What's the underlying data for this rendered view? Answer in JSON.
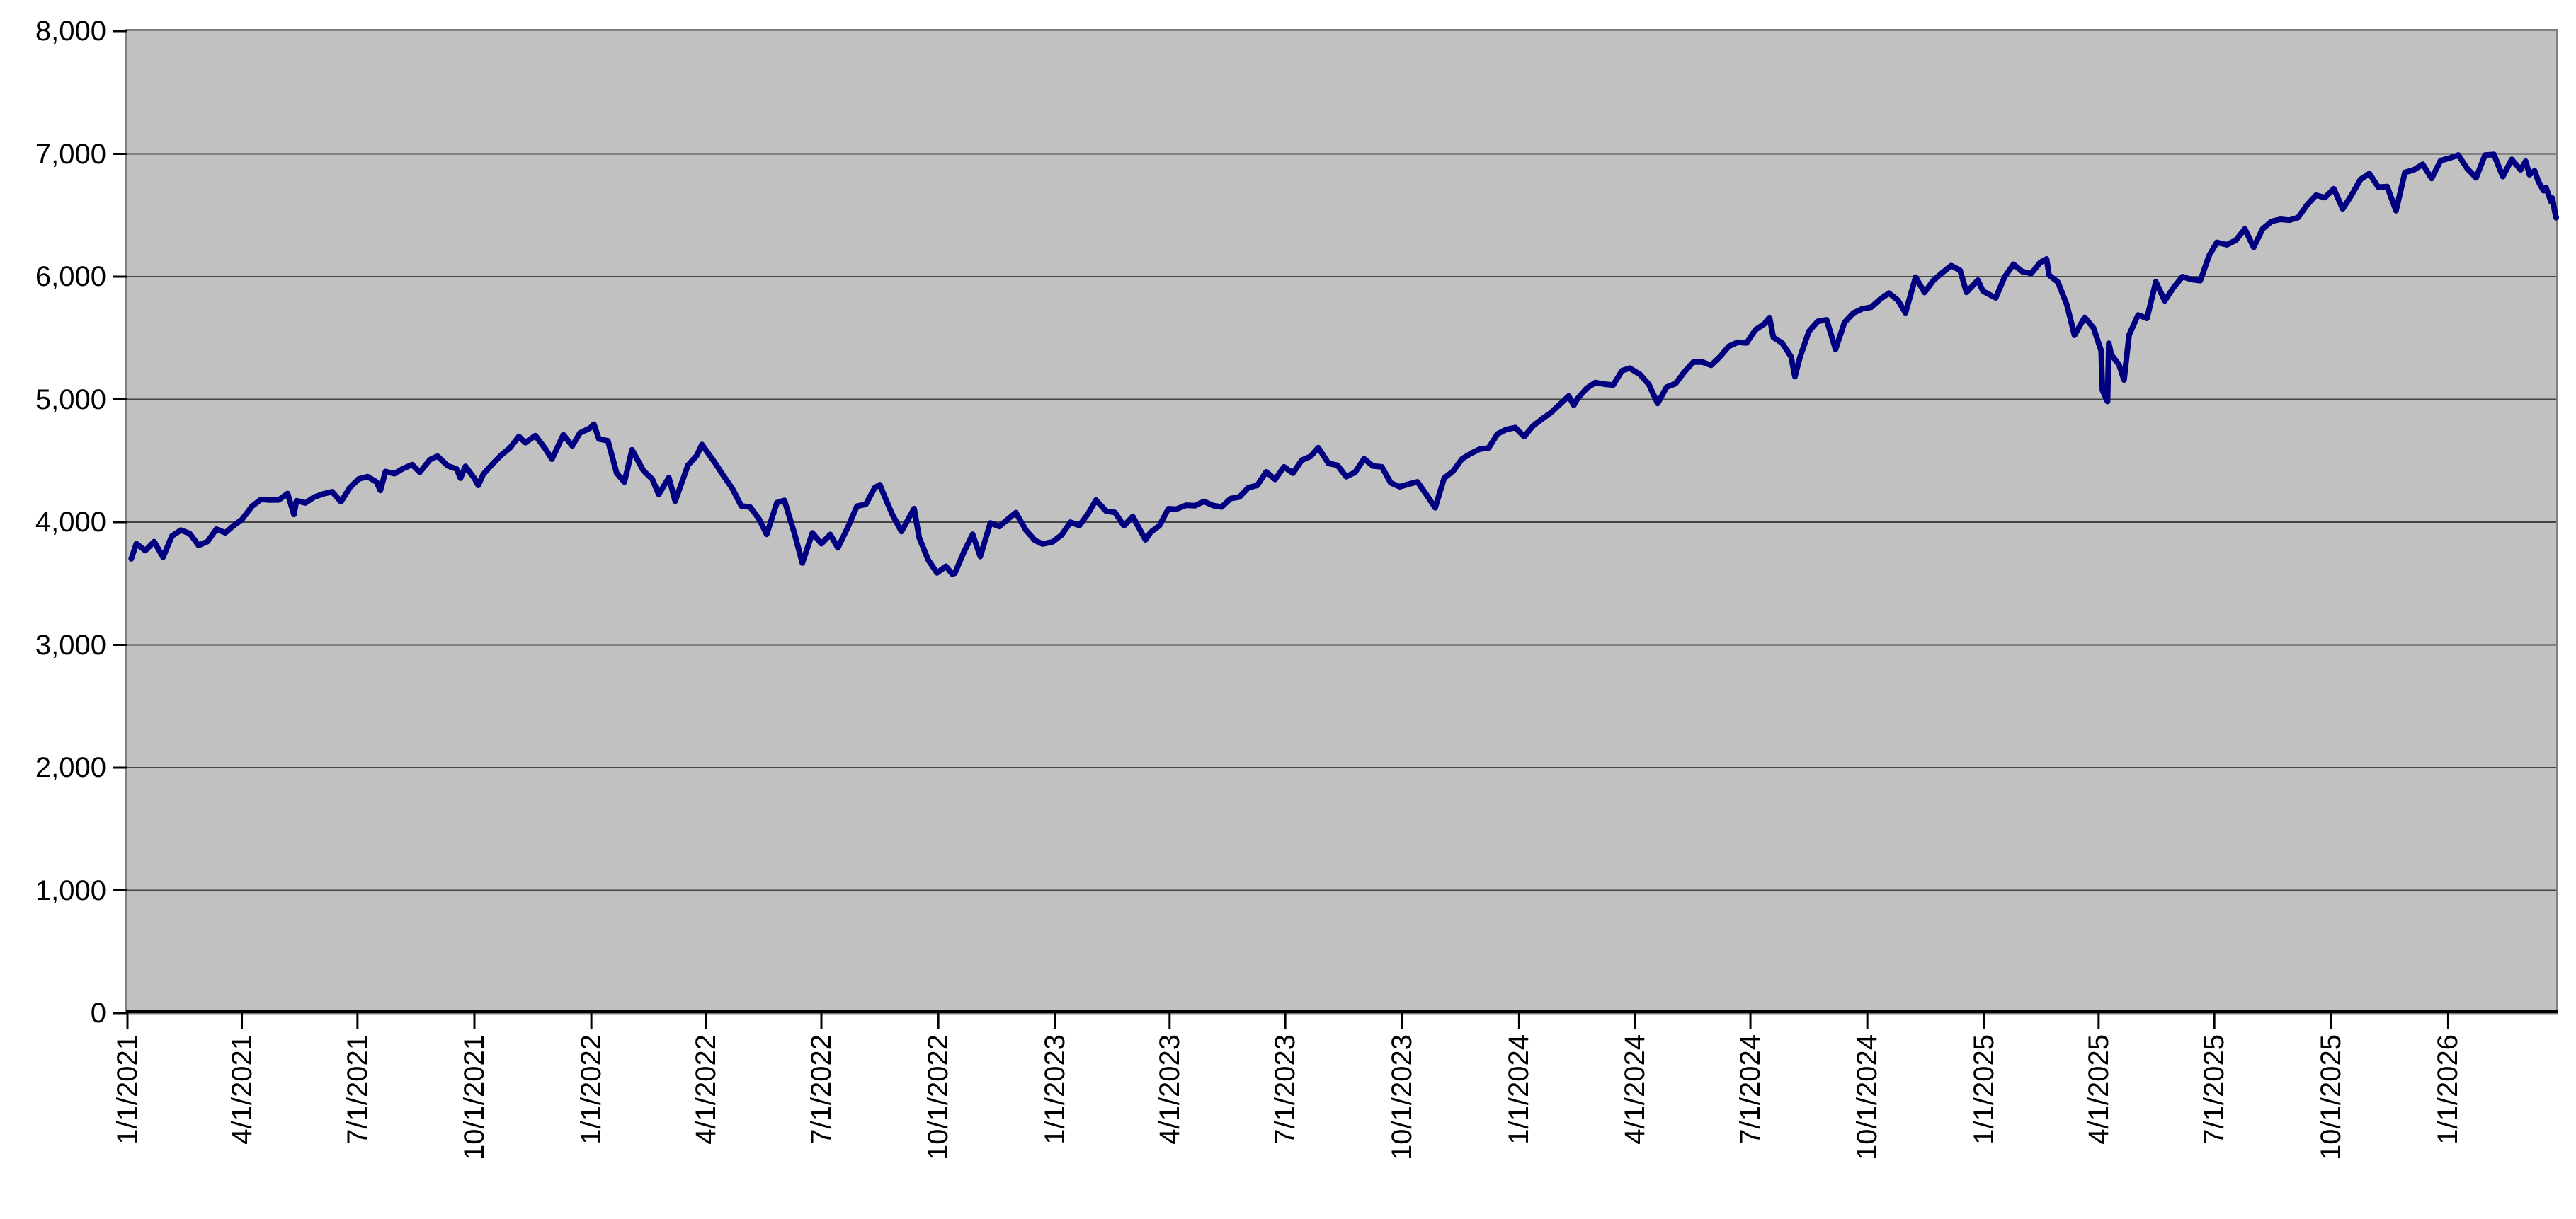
{
  "chart_data": {
    "type": "line",
    "title": "",
    "xlabel": "",
    "ylabel": "",
    "grid": "horizontal",
    "legend": "none",
    "ylim": [
      0,
      8000
    ],
    "x_min": "2021-01-01",
    "x_max": "2026-03-27",
    "x_tick_rotation_deg": 90,
    "colors": {
      "page_bg": "#ffffff",
      "plot_bg": "#c1c1c1",
      "plot_border": "#7f7f7f",
      "gridline": "#444444",
      "axis_line": "#000000",
      "tick_mark": "#000000",
      "label_text": "#000000",
      "series_line": "#000080"
    },
    "y_ticks": [
      {
        "value": 0,
        "label": "0"
      },
      {
        "value": 1000,
        "label": "1,000"
      },
      {
        "value": 2000,
        "label": "2,000"
      },
      {
        "value": 3000,
        "label": "3,000"
      },
      {
        "value": 4000,
        "label": "4,000"
      },
      {
        "value": 5000,
        "label": "5,000"
      },
      {
        "value": 6000,
        "label": "6,000"
      },
      {
        "value": 7000,
        "label": "7,000"
      },
      {
        "value": 8000,
        "label": "8,000"
      }
    ],
    "x_ticks": [
      {
        "date": "2021-01-01",
        "label": "1/1/2021"
      },
      {
        "date": "2021-04-01",
        "label": "4/1/2021"
      },
      {
        "date": "2021-07-01",
        "label": "7/1/2021"
      },
      {
        "date": "2021-10-01",
        "label": "10/1/2021"
      },
      {
        "date": "2022-01-01",
        "label": "1/1/2022"
      },
      {
        "date": "2022-04-01",
        "label": "4/1/2022"
      },
      {
        "date": "2022-07-01",
        "label": "7/1/2022"
      },
      {
        "date": "2022-10-01",
        "label": "10/1/2022"
      },
      {
        "date": "2023-01-01",
        "label": "1/1/2023"
      },
      {
        "date": "2023-04-01",
        "label": "4/1/2023"
      },
      {
        "date": "2023-07-01",
        "label": "7/1/2023"
      },
      {
        "date": "2023-10-01",
        "label": "10/1/2023"
      },
      {
        "date": "2024-01-01",
        "label": "1/1/2024"
      },
      {
        "date": "2024-04-01",
        "label": "4/1/2024"
      },
      {
        "date": "2024-07-01",
        "label": "7/1/2024"
      },
      {
        "date": "2024-10-01",
        "label": "10/1/2024"
      },
      {
        "date": "2025-01-01",
        "label": "1/1/2025"
      },
      {
        "date": "2025-04-01",
        "label": "4/1/2025"
      },
      {
        "date": "2025-07-01",
        "label": "7/1/2025"
      },
      {
        "date": "2025-10-01",
        "label": "10/1/2025"
      },
      {
        "date": "2026-01-01",
        "label": "1/1/2026"
      }
    ],
    "points": [
      [
        "2021-01-04",
        3701
      ],
      [
        "2021-01-08",
        3825
      ],
      [
        "2021-01-15",
        3768
      ],
      [
        "2021-01-22",
        3841
      ],
      [
        "2021-01-29",
        3714
      ],
      [
        "2021-02-05",
        3887
      ],
      [
        "2021-02-12",
        3935
      ],
      [
        "2021-02-19",
        3907
      ],
      [
        "2021-02-26",
        3811
      ],
      [
        "2021-03-05",
        3842
      ],
      [
        "2021-03-12",
        3943
      ],
      [
        "2021-03-19",
        3913
      ],
      [
        "2021-03-26",
        3975
      ],
      [
        "2021-04-01",
        4020
      ],
      [
        "2021-04-09",
        4129
      ],
      [
        "2021-04-16",
        4185
      ],
      [
        "2021-04-23",
        4180
      ],
      [
        "2021-04-30",
        4181
      ],
      [
        "2021-05-07",
        4233
      ],
      [
        "2021-05-12",
        4063
      ],
      [
        "2021-05-14",
        4174
      ],
      [
        "2021-05-21",
        4156
      ],
      [
        "2021-05-28",
        4204
      ],
      [
        "2021-06-04",
        4230
      ],
      [
        "2021-06-11",
        4247
      ],
      [
        "2021-06-18",
        4166
      ],
      [
        "2021-06-25",
        4281
      ],
      [
        "2021-07-02",
        4352
      ],
      [
        "2021-07-09",
        4370
      ],
      [
        "2021-07-16",
        4327
      ],
      [
        "2021-07-19",
        4258
      ],
      [
        "2021-07-23",
        4412
      ],
      [
        "2021-07-30",
        4395
      ],
      [
        "2021-08-06",
        4437
      ],
      [
        "2021-08-13",
        4468
      ],
      [
        "2021-08-19",
        4406
      ],
      [
        "2021-08-27",
        4509
      ],
      [
        "2021-09-02",
        4537
      ],
      [
        "2021-09-10",
        4459
      ],
      [
        "2021-09-17",
        4433
      ],
      [
        "2021-09-20",
        4358
      ],
      [
        "2021-09-24",
        4455
      ],
      [
        "2021-10-01",
        4357
      ],
      [
        "2021-10-04",
        4300
      ],
      [
        "2021-10-08",
        4391
      ],
      [
        "2021-10-15",
        4471
      ],
      [
        "2021-10-22",
        4545
      ],
      [
        "2021-10-29",
        4605
      ],
      [
        "2021-11-05",
        4698
      ],
      [
        "2021-11-10",
        4647
      ],
      [
        "2021-11-18",
        4705
      ],
      [
        "2021-11-26",
        4595
      ],
      [
        "2021-12-01",
        4513
      ],
      [
        "2021-12-10",
        4712
      ],
      [
        "2021-12-17",
        4621
      ],
      [
        "2021-12-23",
        4726
      ],
      [
        "2021-12-31",
        4766
      ],
      [
        "2022-01-03",
        4797
      ],
      [
        "2022-01-07",
        4677
      ],
      [
        "2022-01-14",
        4663
      ],
      [
        "2022-01-21",
        4398
      ],
      [
        "2022-01-27",
        4327
      ],
      [
        "2022-02-02",
        4589
      ],
      [
        "2022-02-11",
        4419
      ],
      [
        "2022-02-18",
        4349
      ],
      [
        "2022-02-23",
        4226
      ],
      [
        "2022-03-03",
        4363
      ],
      [
        "2022-03-08",
        4171
      ],
      [
        "2022-03-18",
        4463
      ],
      [
        "2022-03-25",
        4543
      ],
      [
        "2022-03-29",
        4632
      ],
      [
        "2022-04-08",
        4488
      ],
      [
        "2022-04-14",
        4393
      ],
      [
        "2022-04-22",
        4272
      ],
      [
        "2022-04-29",
        4132
      ],
      [
        "2022-05-06",
        4123
      ],
      [
        "2022-05-13",
        4024
      ],
      [
        "2022-05-19",
        3901
      ],
      [
        "2022-05-27",
        4158
      ],
      [
        "2022-06-02",
        4177
      ],
      [
        "2022-06-10",
        3901
      ],
      [
        "2022-06-16",
        3667
      ],
      [
        "2022-06-24",
        3912
      ],
      [
        "2022-07-01",
        3825
      ],
      [
        "2022-07-08",
        3899
      ],
      [
        "2022-07-14",
        3790
      ],
      [
        "2022-07-22",
        3962
      ],
      [
        "2022-07-29",
        4130
      ],
      [
        "2022-08-05",
        4145
      ],
      [
        "2022-08-12",
        4280
      ],
      [
        "2022-08-16",
        4305
      ],
      [
        "2022-08-19",
        4228
      ],
      [
        "2022-08-26",
        4058
      ],
      [
        "2022-09-02",
        3924
      ],
      [
        "2022-09-12",
        4110
      ],
      [
        "2022-09-16",
        3873
      ],
      [
        "2022-09-23",
        3693
      ],
      [
        "2022-09-30",
        3586
      ],
      [
        "2022-10-07",
        3640
      ],
      [
        "2022-10-12",
        3577
      ],
      [
        "2022-10-14",
        3583
      ],
      [
        "2022-10-21",
        3753
      ],
      [
        "2022-10-28",
        3901
      ],
      [
        "2022-11-03",
        3720
      ],
      [
        "2022-11-11",
        3993
      ],
      [
        "2022-11-18",
        3965
      ],
      [
        "2022-11-25",
        4026
      ],
      [
        "2022-12-01",
        4077
      ],
      [
        "2022-12-09",
        3934
      ],
      [
        "2022-12-16",
        3852
      ],
      [
        "2022-12-22",
        3822
      ],
      [
        "2022-12-30",
        3840
      ],
      [
        "2023-01-06",
        3895
      ],
      [
        "2023-01-13",
        3999
      ],
      [
        "2023-01-20",
        3973
      ],
      [
        "2023-01-27",
        4071
      ],
      [
        "2023-02-02",
        4180
      ],
      [
        "2023-02-10",
        4090
      ],
      [
        "2023-02-17",
        4079
      ],
      [
        "2023-02-24",
        3970
      ],
      [
        "2023-03-03",
        4046
      ],
      [
        "2023-03-13",
        3856
      ],
      [
        "2023-03-17",
        3917
      ],
      [
        "2023-03-24",
        3971
      ],
      [
        "2023-03-31",
        4109
      ],
      [
        "2023-04-06",
        4105
      ],
      [
        "2023-04-14",
        4138
      ],
      [
        "2023-04-21",
        4134
      ],
      [
        "2023-04-28",
        4169
      ],
      [
        "2023-05-05",
        4136
      ],
      [
        "2023-05-12",
        4124
      ],
      [
        "2023-05-19",
        4192
      ],
      [
        "2023-05-26",
        4205
      ],
      [
        "2023-06-02",
        4282
      ],
      [
        "2023-06-09",
        4299
      ],
      [
        "2023-06-16",
        4410
      ],
      [
        "2023-06-23",
        4348
      ],
      [
        "2023-06-30",
        4450
      ],
      [
        "2023-07-07",
        4399
      ],
      [
        "2023-07-14",
        4505
      ],
      [
        "2023-07-21",
        4536
      ],
      [
        "2023-07-27",
        4607
      ],
      [
        "2023-08-04",
        4478
      ],
      [
        "2023-08-11",
        4464
      ],
      [
        "2023-08-18",
        4370
      ],
      [
        "2023-08-25",
        4406
      ],
      [
        "2023-09-01",
        4516
      ],
      [
        "2023-09-08",
        4457
      ],
      [
        "2023-09-15",
        4450
      ],
      [
        "2023-09-22",
        4320
      ],
      [
        "2023-09-29",
        4288
      ],
      [
        "2023-10-06",
        4309
      ],
      [
        "2023-10-13",
        4328
      ],
      [
        "2023-10-20",
        4224
      ],
      [
        "2023-10-27",
        4117
      ],
      [
        "2023-11-03",
        4358
      ],
      [
        "2023-11-10",
        4415
      ],
      [
        "2023-11-17",
        4514
      ],
      [
        "2023-11-24",
        4559
      ],
      [
        "2023-12-01",
        4595
      ],
      [
        "2023-12-08",
        4604
      ],
      [
        "2023-12-15",
        4719
      ],
      [
        "2023-12-22",
        4755
      ],
      [
        "2023-12-29",
        4770
      ],
      [
        "2024-01-05",
        4697
      ],
      [
        "2024-01-12",
        4784
      ],
      [
        "2024-01-19",
        4840
      ],
      [
        "2024-01-26",
        4891
      ],
      [
        "2024-02-02",
        4959
      ],
      [
        "2024-02-09",
        5027
      ],
      [
        "2024-02-13",
        4953
      ],
      [
        "2024-02-16",
        5006
      ],
      [
        "2024-02-23",
        5089
      ],
      [
        "2024-03-01",
        5137
      ],
      [
        "2024-03-08",
        5124
      ],
      [
        "2024-03-15",
        5117
      ],
      [
        "2024-03-22",
        5234
      ],
      [
        "2024-03-28",
        5254
      ],
      [
        "2024-04-05",
        5204
      ],
      [
        "2024-04-12",
        5123
      ],
      [
        "2024-04-19",
        4967
      ],
      [
        "2024-04-26",
        5100
      ],
      [
        "2024-05-03",
        5128
      ],
      [
        "2024-05-10",
        5223
      ],
      [
        "2024-05-17",
        5303
      ],
      [
        "2024-05-24",
        5305
      ],
      [
        "2024-05-31",
        5278
      ],
      [
        "2024-06-07",
        5347
      ],
      [
        "2024-06-14",
        5432
      ],
      [
        "2024-06-21",
        5465
      ],
      [
        "2024-06-28",
        5460
      ],
      [
        "2024-07-05",
        5567
      ],
      [
        "2024-07-12",
        5615
      ],
      [
        "2024-07-16",
        5667
      ],
      [
        "2024-07-19",
        5505
      ],
      [
        "2024-07-26",
        5459
      ],
      [
        "2024-08-02",
        5347
      ],
      [
        "2024-08-05",
        5186
      ],
      [
        "2024-08-09",
        5344
      ],
      [
        "2024-08-16",
        5554
      ],
      [
        "2024-08-23",
        5635
      ],
      [
        "2024-08-30",
        5648
      ],
      [
        "2024-09-06",
        5408
      ],
      [
        "2024-09-13",
        5626
      ],
      [
        "2024-09-20",
        5703
      ],
      [
        "2024-09-27",
        5738
      ],
      [
        "2024-10-04",
        5751
      ],
      [
        "2024-10-11",
        5815
      ],
      [
        "2024-10-18",
        5865
      ],
      [
        "2024-10-25",
        5808
      ],
      [
        "2024-10-31",
        5705
      ],
      [
        "2024-11-08",
        5996
      ],
      [
        "2024-11-15",
        5871
      ],
      [
        "2024-11-22",
        5969
      ],
      [
        "2024-11-29",
        6032
      ],
      [
        "2024-12-06",
        6090
      ],
      [
        "2024-12-13",
        6051
      ],
      [
        "2024-12-18",
        5872
      ],
      [
        "2024-12-27",
        5971
      ],
      [
        "2024-12-31",
        5882
      ],
      [
        "2025-01-10",
        5827
      ],
      [
        "2025-01-17",
        5997
      ],
      [
        "2025-01-24",
        6101
      ],
      [
        "2025-01-31",
        6041
      ],
      [
        "2025-02-07",
        6026
      ],
      [
        "2025-02-14",
        6115
      ],
      [
        "2025-02-19",
        6144
      ],
      [
        "2025-02-21",
        6013
      ],
      [
        "2025-02-28",
        5955
      ],
      [
        "2025-03-07",
        5770
      ],
      [
        "2025-03-13",
        5522
      ],
      [
        "2025-03-21",
        5668
      ],
      [
        "2025-03-28",
        5581
      ],
      [
        "2025-04-03",
        5396
      ],
      [
        "2025-04-04",
        5074
      ],
      [
        "2025-04-08",
        4983
      ],
      [
        "2025-04-09",
        5457
      ],
      [
        "2025-04-11",
        5363
      ],
      [
        "2025-04-17",
        5283
      ],
      [
        "2025-04-21",
        5158
      ],
      [
        "2025-04-25",
        5525
      ],
      [
        "2025-05-02",
        5687
      ],
      [
        "2025-05-09",
        5660
      ],
      [
        "2025-05-16",
        5958
      ],
      [
        "2025-05-23",
        5803
      ],
      [
        "2025-05-30",
        5912
      ],
      [
        "2025-06-06",
        6000
      ],
      [
        "2025-06-13",
        5977
      ],
      [
        "2025-06-20",
        5968
      ],
      [
        "2025-06-27",
        6173
      ],
      [
        "2025-07-03",
        6279
      ],
      [
        "2025-07-11",
        6260
      ],
      [
        "2025-07-18",
        6297
      ],
      [
        "2025-07-25",
        6389
      ],
      [
        "2025-08-01",
        6238
      ],
      [
        "2025-08-08",
        6389
      ],
      [
        "2025-08-15",
        6450
      ],
      [
        "2025-08-22",
        6467
      ],
      [
        "2025-08-29",
        6460
      ],
      [
        "2025-09-05",
        6482
      ],
      [
        "2025-09-12",
        6584
      ],
      [
        "2025-09-19",
        6664
      ],
      [
        "2025-09-26",
        6644
      ],
      [
        "2025-10-03",
        6716
      ],
      [
        "2025-10-10",
        6552
      ],
      [
        "2025-10-17",
        6664
      ],
      [
        "2025-10-24",
        6792
      ],
      [
        "2025-10-31",
        6840
      ],
      [
        "2025-11-07",
        6729
      ],
      [
        "2025-11-14",
        6734
      ],
      [
        "2025-11-21",
        6538
      ],
      [
        "2025-11-28",
        6849
      ],
      [
        "2025-12-05",
        6870
      ],
      [
        "2025-12-12",
        6915
      ],
      [
        "2025-12-19",
        6800
      ],
      [
        "2025-12-26",
        6945
      ],
      [
        "2026-01-02",
        6965
      ],
      [
        "2026-01-09",
        6990
      ],
      [
        "2026-01-16",
        6880
      ],
      [
        "2026-01-23",
        6805
      ],
      [
        "2026-01-30",
        6990
      ],
      [
        "2026-02-06",
        6995
      ],
      [
        "2026-02-13",
        6815
      ],
      [
        "2026-02-20",
        6955
      ],
      [
        "2026-02-27",
        6870
      ],
      [
        "2026-03-03",
        6940
      ],
      [
        "2026-03-06",
        6830
      ],
      [
        "2026-03-10",
        6862
      ],
      [
        "2026-03-13",
        6775
      ],
      [
        "2026-03-17",
        6700
      ],
      [
        "2026-03-19",
        6725
      ],
      [
        "2026-03-23",
        6610
      ],
      [
        "2026-03-24",
        6640
      ],
      [
        "2026-03-26",
        6525
      ],
      [
        "2026-03-27",
        6480
      ]
    ]
  }
}
